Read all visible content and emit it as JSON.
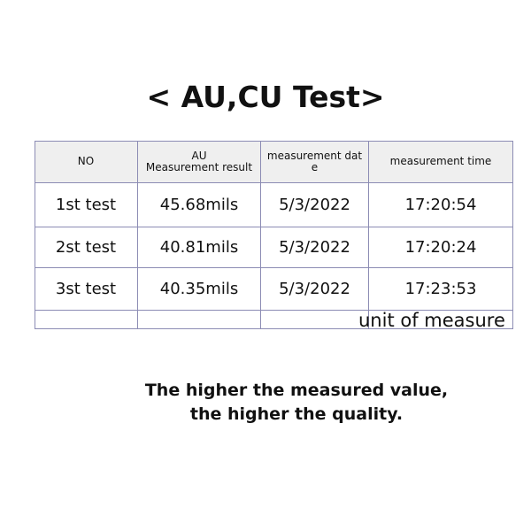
{
  "title": "< AU,CU Test>",
  "table": {
    "headers": [
      "NO",
      "AU\nMeasurement result",
      "measurement dat\ne",
      "measurement time"
    ],
    "rows": [
      [
        "1st test",
        "45.68mils",
        "5/3/2022",
        "17:20:54"
      ],
      [
        "2st test",
        "40.81mils",
        "5/3/2022",
        "17:20:24"
      ],
      [
        "3st test",
        "40.35mils",
        "5/3/2022",
        "17:23:53"
      ]
    ],
    "unit_label": "unit of measure"
  },
  "note": {
    "line1": "The higher the measured value,",
    "line2": "the higher the quality."
  }
}
